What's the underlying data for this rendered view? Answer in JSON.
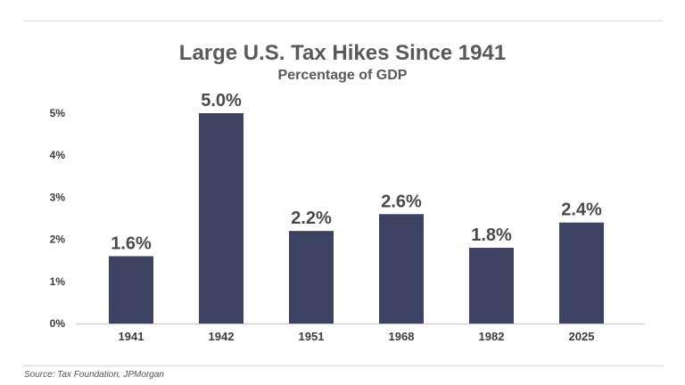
{
  "title": "Large U.S. Tax Hikes Since 1941",
  "subtitle": "Percentage of GDP",
  "source": "Source: Tax Foundation, JPMorgan",
  "colors": {
    "bar": "#3d4263",
    "axis": "#c8c8c8",
    "text": "#595959"
  },
  "chart_data": {
    "type": "bar",
    "title": "Large U.S. Tax Hikes Since 1941",
    "subtitle": "Percentage of GDP",
    "categories": [
      "1941",
      "1942",
      "1951",
      "1968",
      "1982",
      "2025"
    ],
    "values": [
      1.6,
      5.0,
      2.2,
      2.6,
      1.8,
      2.4
    ],
    "data_labels": [
      "1.6%",
      "5.0%",
      "2.2%",
      "2.6%",
      "1.8%",
      "2.4%"
    ],
    "y_ticks": [
      "0%",
      "1%",
      "2%",
      "3%",
      "4%",
      "5%"
    ],
    "ylim": [
      0,
      5
    ],
    "xlabel": "",
    "ylabel": "",
    "grid": false,
    "legend": "none"
  }
}
